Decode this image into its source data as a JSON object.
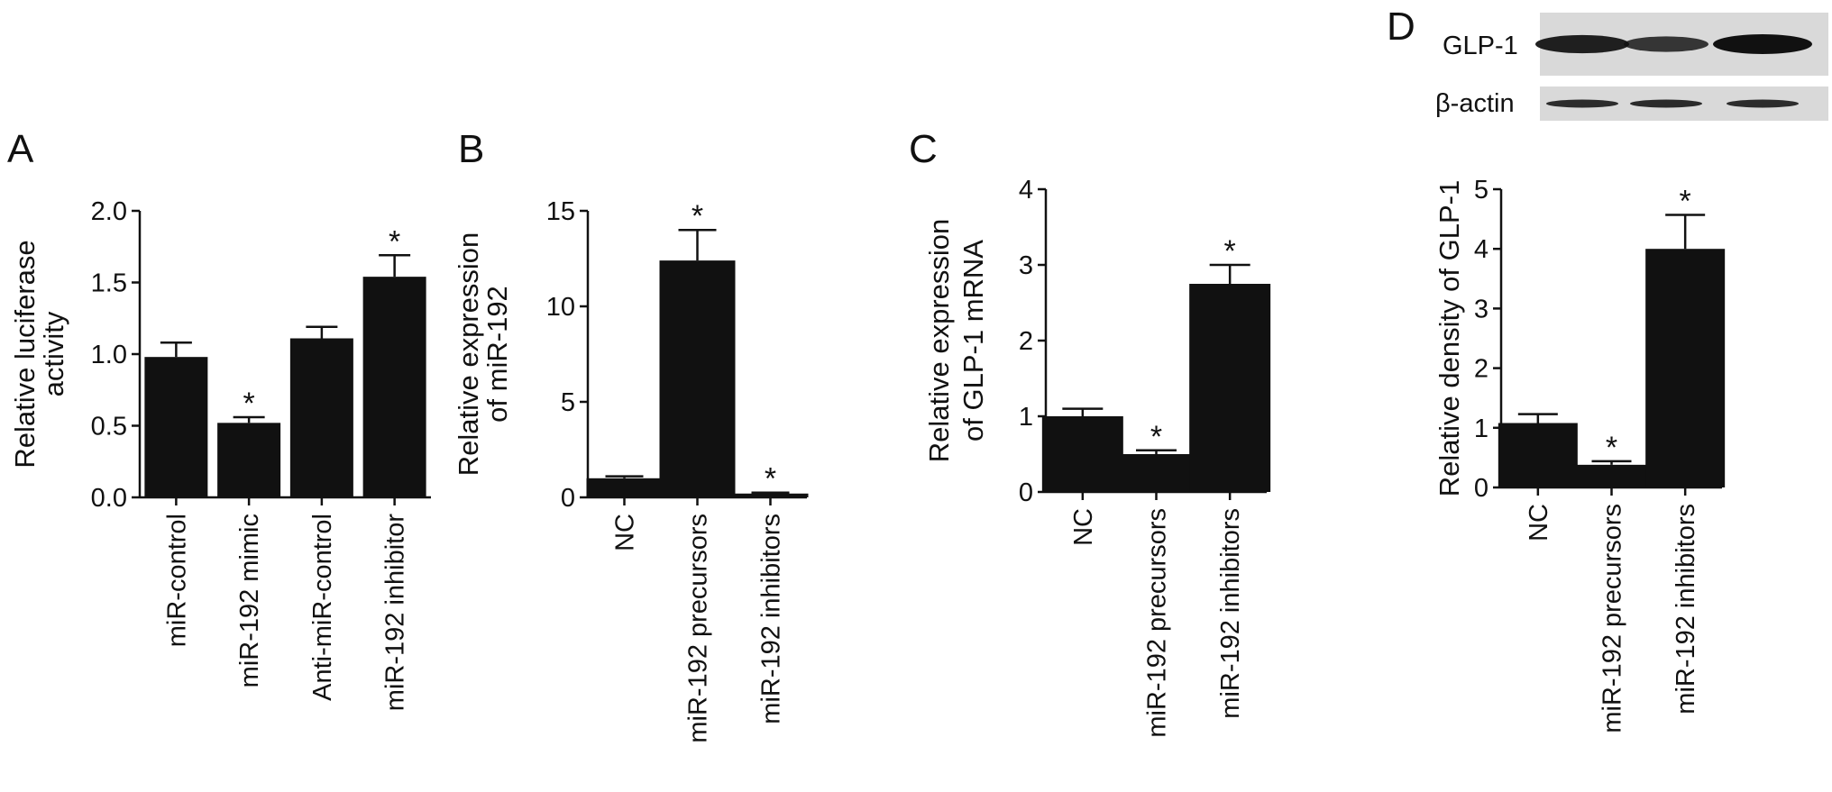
{
  "chart_data": [
    {
      "panel": "A",
      "type": "bar",
      "ylabel": [
        "Relative luciferase",
        "activity"
      ],
      "ylim": [
        0,
        2.0
      ],
      "yticks": [
        "0.0",
        "0.5",
        "1.0",
        "1.5",
        "2.0"
      ],
      "categories": [
        "miR-control",
        "miR-192 mimic",
        "Anti-miR-control",
        "miR-192 inhibitor"
      ],
      "values": [
        0.98,
        0.52,
        1.11,
        1.54
      ],
      "errors": [
        0.1,
        0.04,
        0.08,
        0.15
      ],
      "significance": [
        "",
        "*",
        "",
        "*"
      ],
      "bar_color": "#111111"
    },
    {
      "panel": "B",
      "type": "bar",
      "ylabel": [
        "Relative expression",
        "of miR-192"
      ],
      "ylim": [
        0,
        15
      ],
      "yticks": [
        "0",
        "5",
        "10",
        "15"
      ],
      "categories": [
        "NC",
        "miR-192 precursors",
        "miR-192 inhibitors"
      ],
      "values": [
        1.0,
        12.4,
        0.2
      ],
      "errors": [
        0.1,
        1.6,
        0.05
      ],
      "significance": [
        "",
        "*",
        "*"
      ],
      "bar_color": "#111111"
    },
    {
      "panel": "C",
      "type": "bar",
      "ylabel": [
        "Relative expression",
        "of GLP-1 mRNA"
      ],
      "ylim": [
        0,
        4
      ],
      "yticks": [
        "0",
        "1",
        "2",
        "3",
        "4"
      ],
      "categories": [
        "NC",
        "miR-192 precursors",
        "miR-192 inhibitors"
      ],
      "values": [
        1.0,
        0.5,
        2.75
      ],
      "errors": [
        0.1,
        0.05,
        0.25
      ],
      "significance": [
        "",
        "*",
        "*"
      ],
      "bar_color": "#111111"
    },
    {
      "panel": "D",
      "type": "bar",
      "ylabel": [
        "Relative density of GLP-1"
      ],
      "ylim": [
        0,
        5
      ],
      "yticks": [
        "0",
        "1",
        "2",
        "3",
        "4",
        "5"
      ],
      "categories": [
        "NC",
        "miR-192 precursors",
        "miR-192 inhibitors"
      ],
      "values": [
        1.08,
        0.38,
        4.0
      ],
      "errors": [
        0.15,
        0.06,
        0.57
      ],
      "significance": [
        "",
        "*",
        "*"
      ],
      "bar_color": "#111111"
    }
  ],
  "blot": {
    "rows": [
      {
        "label": "GLP-1",
        "band_intensity": [
          0.85,
          0.6,
          1.0
        ]
      },
      {
        "label": "β-actin",
        "band_intensity": [
          0.7,
          0.72,
          0.7
        ]
      }
    ]
  }
}
